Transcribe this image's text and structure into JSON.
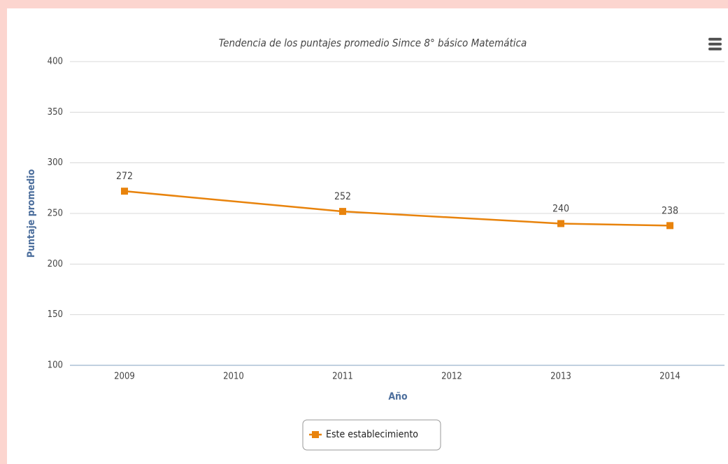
{
  "chart_data": {
    "type": "line",
    "title": "Tendencia de los puntajes promedio Simce 8° básico Matemática",
    "y_label": "Puntaje promedio",
    "x_label": "Año",
    "x": [
      2009,
      2011,
      2013,
      2014
    ],
    "xlim": [
      2008.5,
      2014.5
    ],
    "xticks": [
      2009,
      2010,
      2011,
      2012,
      2013,
      2014
    ],
    "ylim": [
      100,
      400
    ],
    "yticks": [
      100,
      150,
      200,
      250,
      300,
      350,
      400
    ],
    "grid": true,
    "series": [
      {
        "name": "Este establecimiento",
        "color": "#e8830c",
        "values": [
          272,
          252,
          240,
          238
        ]
      }
    ]
  }
}
